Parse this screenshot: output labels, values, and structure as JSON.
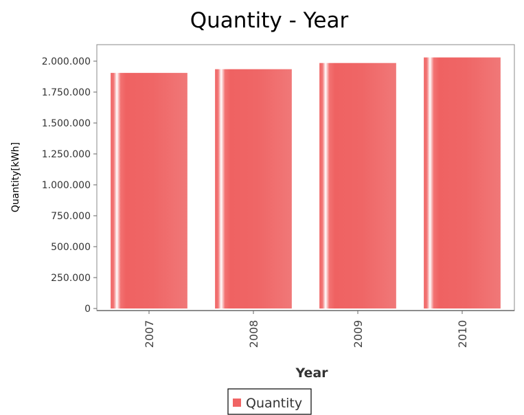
{
  "chart_data": {
    "type": "bar",
    "title": "Quantity - Year",
    "xlabel": "Year",
    "ylabel": "Quantity[kWh]",
    "categories": [
      "2007",
      "2008",
      "2009",
      "2010"
    ],
    "series": [
      {
        "name": "Quantity",
        "values": [
          1905000,
          1935000,
          1985000,
          2030000
        ]
      }
    ],
    "ylim": [
      0,
      2150000
    ],
    "yticks": [
      0,
      250000,
      500000,
      750000,
      1000000,
      1250000,
      1500000,
      1750000,
      2000000
    ],
    "ytick_labels": [
      "0",
      "250.000",
      "500.000",
      "750.000",
      "1.000.000",
      "1.250.000",
      "1.500.000",
      "1.750.000",
      "2.000.000"
    ],
    "grid": false,
    "legend_position": "bottom",
    "bar_color": "#F06464",
    "bar_highlight": "#FFFFFF"
  }
}
